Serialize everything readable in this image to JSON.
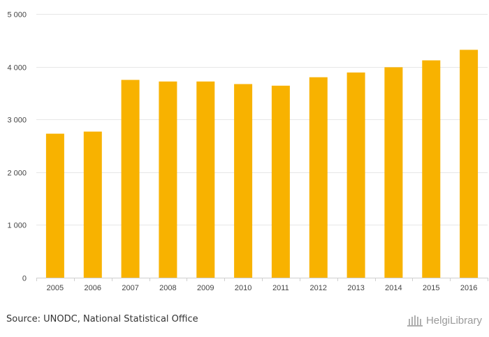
{
  "chart_data": {
    "type": "bar",
    "categories": [
      "2005",
      "2006",
      "2007",
      "2008",
      "2009",
      "2010",
      "2011",
      "2012",
      "2013",
      "2014",
      "2015",
      "2016"
    ],
    "values": [
      2730,
      2770,
      3750,
      3720,
      3720,
      3670,
      3640,
      3800,
      3890,
      3990,
      4120,
      4320
    ],
    "ylim": [
      0,
      5000
    ],
    "yticks": [
      0,
      1000,
      2000,
      3000,
      4000,
      5000
    ],
    "ytick_labels": [
      "0",
      "1 000",
      "2 000",
      "3 000",
      "4 000",
      "5 000"
    ],
    "grid": true,
    "bar_color": "#f8b200",
    "title": "",
    "xlabel": "",
    "ylabel": ""
  },
  "footer": {
    "source": "Source: UNODC, National Statistical Office",
    "brand": "HelgiLibrary",
    "brand_icon": "library-building-icon",
    "brand_color": "#9a9a9a"
  }
}
